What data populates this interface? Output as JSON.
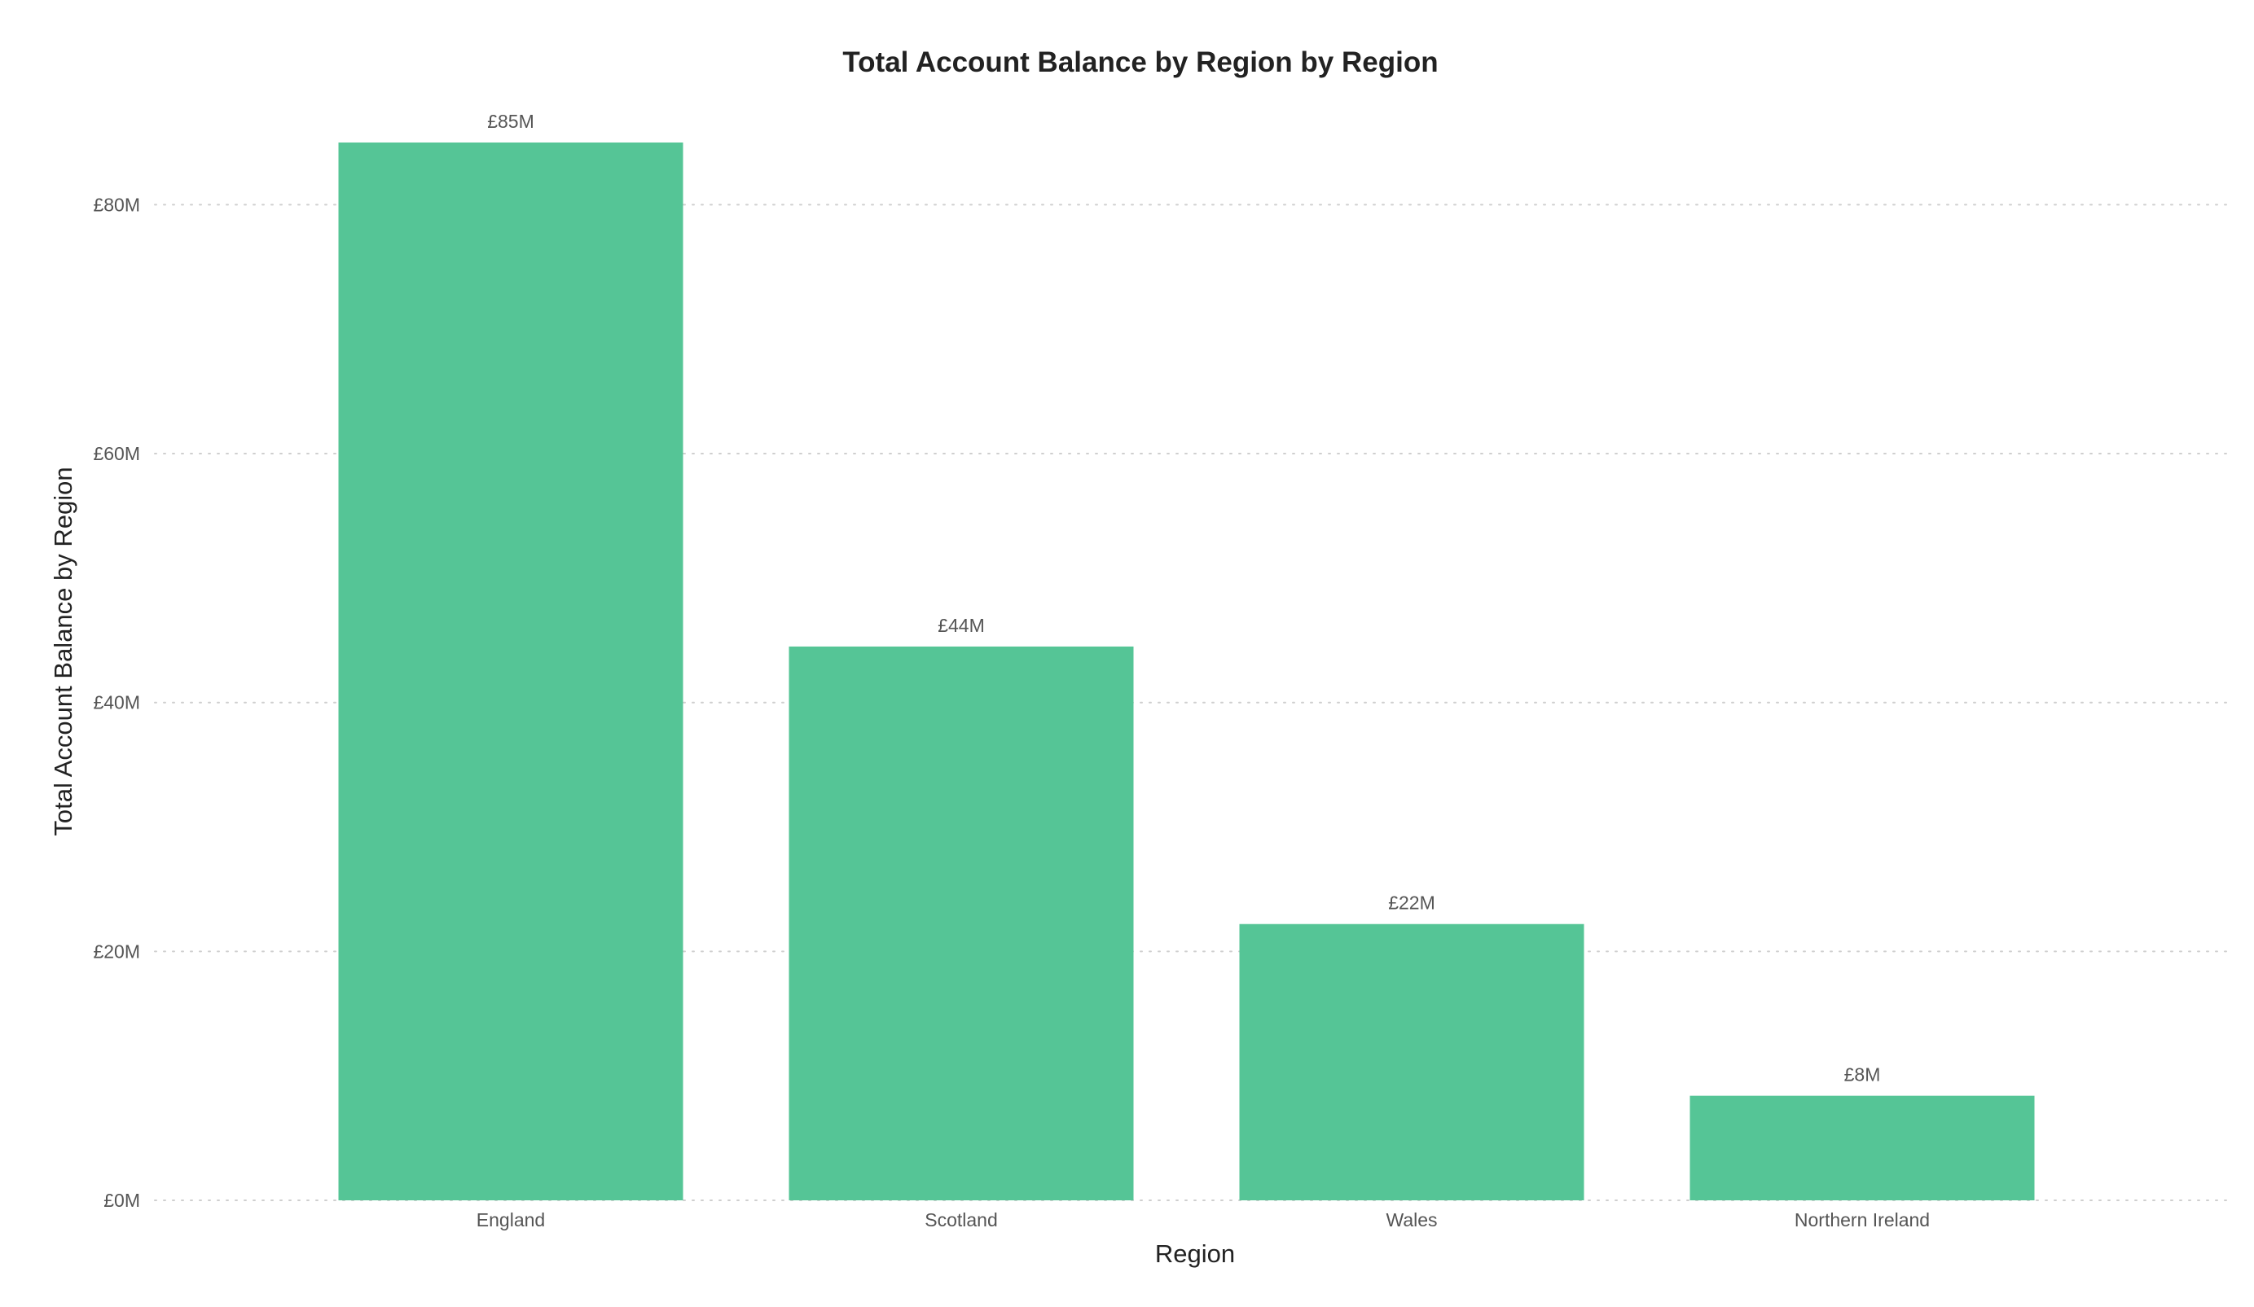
{
  "chart_data": {
    "type": "bar",
    "title": "Total Account Balance by Region by Region",
    "xlabel": "Region",
    "ylabel": "Total Account Balance by Region",
    "categories": [
      "England",
      "Scotland",
      "Wales",
      "Northern Ireland"
    ],
    "values": [
      85000000,
      44500000,
      22200000,
      8400000
    ],
    "data_labels": [
      "£85M",
      "£44M",
      "£22M",
      "£8M"
    ],
    "ylim": [
      0,
      85000000
    ],
    "yticks": [
      0,
      20000000,
      40000000,
      60000000,
      80000000
    ],
    "ytick_labels": [
      "£0M",
      "£20M",
      "£40M",
      "£60M",
      "£80M"
    ],
    "grid": true,
    "legend": "none",
    "colors": {
      "bar": "#55c596",
      "grid": "#cfcfcf",
      "text": "#222222",
      "tick_text": "#555555"
    }
  }
}
